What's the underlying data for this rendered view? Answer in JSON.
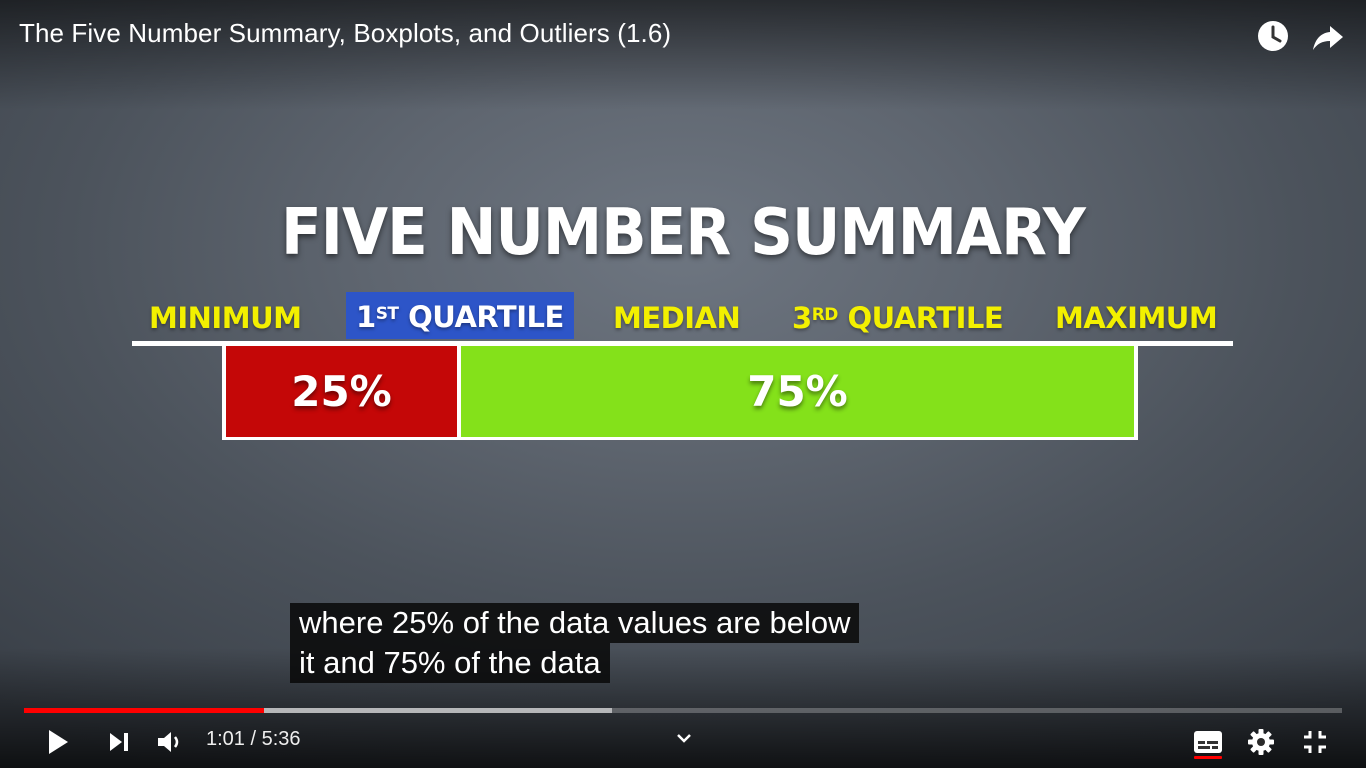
{
  "player": {
    "title": "The Five Number Summary, Boxplots, and Outliers (1.6)",
    "top_icons": [
      "watch-later-icon",
      "share-icon"
    ],
    "current_time": "1:01",
    "separator": " / ",
    "duration": "5:36",
    "played_fraction": 0.182,
    "buffered_fraction": 0.446,
    "controls": [
      "play-icon",
      "next-icon",
      "volume-icon",
      "chevron-down-icon",
      "subtitles-icon",
      "settings-icon",
      "exit-fullscreen-icon"
    ],
    "accent_color": "#ff0000"
  },
  "slide": {
    "heading": "FIVE NUMBER SUMMARY",
    "labels": {
      "minimum": "MINIMUM",
      "q1_num": "1",
      "q1_sup": "ST",
      "q1_word": "QUARTILE",
      "median": "MEDIAN",
      "q3_num": "3",
      "q3_sup": "RD",
      "q3_word": "QUARTILE",
      "maximum": "MAXIMUM"
    },
    "bar": {
      "left_label": "25%",
      "right_label": "75%",
      "left_color": "#c40707",
      "right_color": "#84e11a"
    },
    "label_color": "#f3f000",
    "highlight_color": "#2d55c8"
  },
  "captions": {
    "line1": "where 25% of the data values are below",
    "line2": "it and 75% of the data"
  }
}
